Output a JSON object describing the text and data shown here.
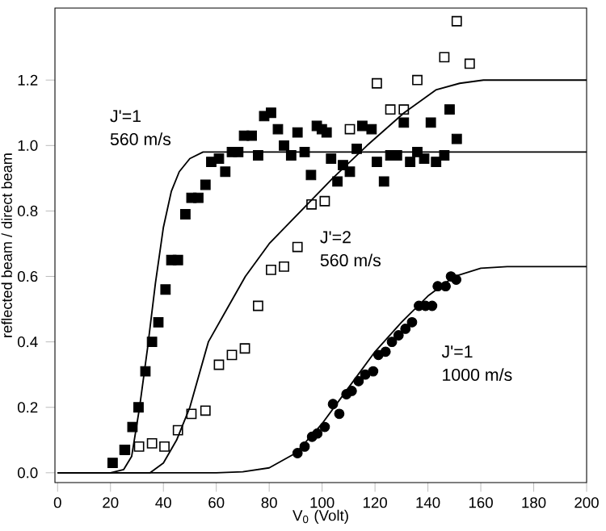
{
  "chart_data": {
    "type": "scatter",
    "xlabel": "V$_{0}$ (Volt)",
    "ylabel": "reflected beam / direct beam",
    "xlim": [
      -1,
      200
    ],
    "ylim": [
      -0.03,
      1.42
    ],
    "xticks": [
      0,
      20,
      40,
      60,
      80,
      100,
      120,
      140,
      160,
      180,
      200
    ],
    "yticks": [
      {
        "value": 0,
        "label": "0.0"
      },
      {
        "value": 0.2,
        "label": "0.2"
      },
      {
        "value": 0.4,
        "label": "0.4"
      },
      {
        "value": 0.6,
        "label": "0.6"
      },
      {
        "value": 0.8,
        "label": "0.8"
      },
      {
        "value": 1.0,
        "label": "1.0"
      },
      {
        "value": 1.2,
        "label": "1.2"
      }
    ],
    "grid": false,
    "annotations": [
      "J'=1",
      "560 m/s",
      "J'=2",
      "560 m/s",
      "J'=1",
      "1000 m/s"
    ],
    "series": [
      {
        "marker": "square",
        "color": "#000000",
        "x": [
          20.8,
          25.5,
          28.3,
          30.6,
          33.2,
          35.7,
          38.1,
          40.8,
          43.0,
          45.5,
          48.3,
          50.6,
          53.2,
          55.9,
          58.1,
          61.0,
          63.4,
          65.9,
          68.3,
          70.5,
          73.4,
          75.8,
          78.1,
          80.7,
          83.3,
          85.6,
          88.3,
          90.7,
          93.4,
          95.8,
          98.0,
          99.9,
          101.7,
          103.4,
          105.8,
          107.9,
          110.5,
          113.1,
          115.2,
          118.7,
          120.7,
          123.4,
          125.8,
          128.3,
          130.9,
          133.3,
          136.0,
          138.6,
          141.1,
          143.1,
          146.2,
          148.2,
          150.9
        ],
        "values": [
          0.03,
          0.07,
          0.14,
          0.2,
          0.31,
          0.4,
          0.46,
          0.56,
          0.65,
          0.65,
          0.79,
          0.84,
          0.84,
          0.88,
          0.95,
          0.96,
          0.92,
          0.98,
          0.98,
          1.03,
          1.03,
          0.97,
          1.09,
          1.1,
          1.05,
          1.0,
          0.97,
          1.04,
          0.98,
          0.91,
          1.06,
          1.05,
          1.04,
          0.96,
          0.89,
          0.94,
          0.92,
          0.99,
          1.06,
          1.05,
          0.95,
          0.89,
          0.97,
          0.97,
          1.07,
          0.95,
          0.98,
          0.96,
          1.07,
          0.95,
          0.97,
          1.11,
          1.02
        ]
      },
      {
        "marker": "square",
        "color": "#000000",
        "x": [
          25.3,
          30.8,
          35.7,
          40.4,
          45.5,
          50.6,
          55.9,
          61.0,
          65.9,
          70.8,
          75.8,
          80.7,
          85.6,
          90.7,
          96.0,
          101.0,
          105.8,
          110.5,
          120.7,
          125.8,
          130.9,
          136.0,
          146.2,
          150.9,
          155.8
        ],
        "values": [
          0.07,
          0.08,
          0.09,
          0.08,
          0.13,
          0.18,
          0.19,
          0.33,
          0.36,
          0.38,
          0.51,
          0.62,
          0.63,
          0.69,
          0.82,
          0.83,
          null,
          1.05,
          1.19,
          1.11,
          1.11,
          1.2,
          1.27,
          1.38,
          1.25
        ]
      },
      {
        "marker": "circle",
        "color": "#000000",
        "x": [
          90.7,
          93.4,
          95.8,
          96.2,
          98.2,
          101.0,
          104.1,
          106.5,
          109.2,
          111.2,
          113.8,
          116.3,
          119.3,
          121.3,
          124.0,
          126.4,
          128.9,
          131.5,
          134.0,
          136.6,
          139.1,
          141.6,
          143.7,
          146.7,
          148.7,
          150.7
        ],
        "values": [
          0.06,
          0.08,
          null,
          0.11,
          0.12,
          0.14,
          0.21,
          0.18,
          0.24,
          0.25,
          0.28,
          0.3,
          0.31,
          0.36,
          0.37,
          0.4,
          0.42,
          0.44,
          0.46,
          0.51,
          0.51,
          0.51,
          0.57,
          0.57,
          0.6,
          0.59
        ]
      },
      {
        "type": "line",
        "marker": "none",
        "line_style": "solid",
        "color": "#000000",
        "x": [
          0,
          20,
          25,
          28,
          31,
          34,
          37,
          40,
          43,
          46,
          50,
          55,
          60,
          200
        ],
        "values": [
          0,
          0,
          0.01,
          0.05,
          0.2,
          0.38,
          0.58,
          0.75,
          0.86,
          0.92,
          0.96,
          0.98,
          0.98,
          0.98
        ]
      },
      {
        "type": "line",
        "marker": "none",
        "line_style": "solid",
        "color": "#000000",
        "x": [
          0,
          35,
          40,
          45,
          50,
          57,
          64,
          71,
          80,
          92,
          104,
          117,
          131,
          143,
          152,
          161,
          200
        ],
        "values": [
          0,
          0,
          0.03,
          0.1,
          0.2,
          0.4,
          0.5,
          0.6,
          0.7,
          0.8,
          0.9,
          1.0,
          1.1,
          1.17,
          1.19,
          1.2,
          1.2
        ]
      },
      {
        "type": "line",
        "marker": "none",
        "line_style": "solid",
        "color": "#000000",
        "x": [
          0,
          60,
          70,
          80,
          90,
          100,
          110,
          120,
          130,
          140,
          150,
          160,
          170,
          200
        ],
        "values": [
          0,
          0,
          0.003,
          0.015,
          0.06,
          0.15,
          0.26,
          0.37,
          0.46,
          0.54,
          0.6,
          0.625,
          0.63,
          0.63
        ]
      }
    ]
  }
}
